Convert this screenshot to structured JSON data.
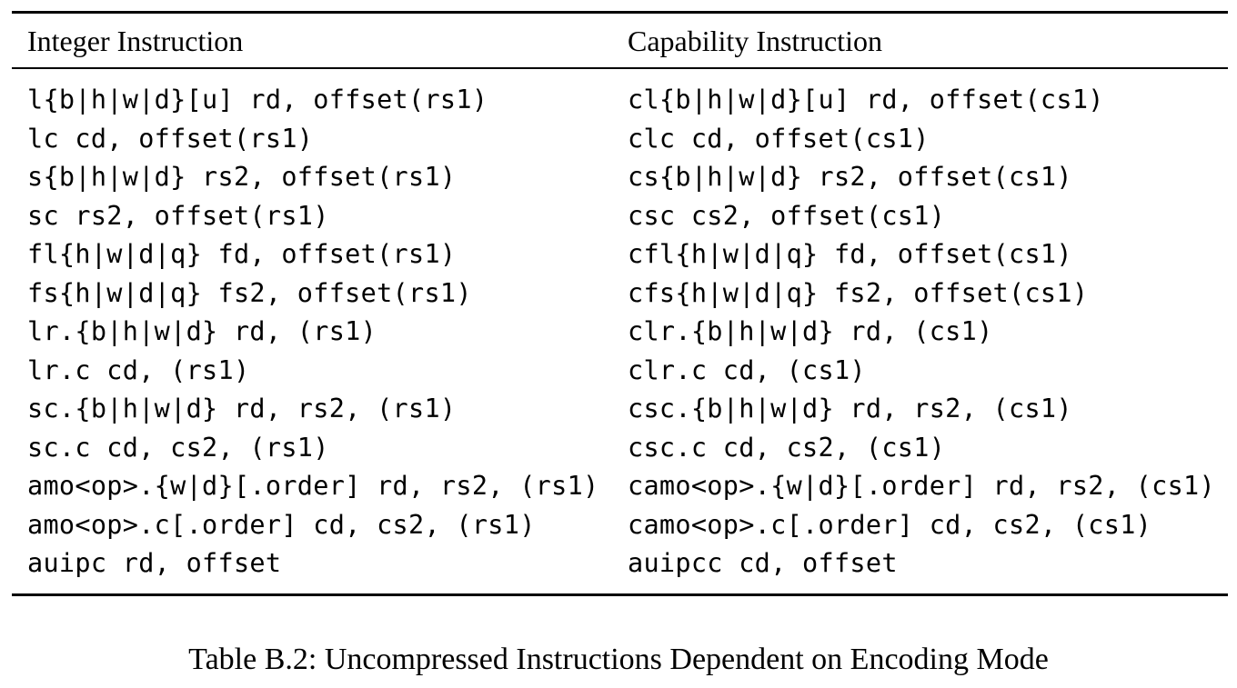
{
  "table": {
    "headers": {
      "left": "Integer Instruction",
      "right": "Capability Instruction"
    },
    "rows": [
      {
        "left": "l{b|h|w|d}[u] rd, offset(rs1)",
        "right": "cl{b|h|w|d}[u] rd, offset(cs1)"
      },
      {
        "left": "lc cd, offset(rs1)",
        "right": "clc cd, offset(cs1)"
      },
      {
        "left": "s{b|h|w|d} rs2, offset(rs1)",
        "right": "cs{b|h|w|d} rs2, offset(cs1)"
      },
      {
        "left": "sc rs2, offset(rs1)",
        "right": "csc cs2, offset(cs1)"
      },
      {
        "left": "fl{h|w|d|q} fd, offset(rs1)",
        "right": "cfl{h|w|d|q} fd, offset(cs1)"
      },
      {
        "left": "fs{h|w|d|q} fs2, offset(rs1)",
        "right": "cfs{h|w|d|q} fs2, offset(cs1)"
      },
      {
        "left": "lr.{b|h|w|d} rd, (rs1)",
        "right": "clr.{b|h|w|d} rd, (cs1)"
      },
      {
        "left": "lr.c cd, (rs1)",
        "right": "clr.c cd, (cs1)"
      },
      {
        "left": "sc.{b|h|w|d} rd, rs2, (rs1)",
        "right": "csc.{b|h|w|d} rd, rs2, (cs1)"
      },
      {
        "left": "sc.c cd, cs2, (rs1)",
        "right": "csc.c cd, cs2, (cs1)"
      },
      {
        "left": "amo<op>.{w|d}[.order] rd, rs2, (rs1)",
        "right": "camo<op>.{w|d}[.order] rd, rs2, (cs1)"
      },
      {
        "left": "amo<op>.c[.order] cd, cs2, (rs1)",
        "right": "camo<op>.c[.order] cd, cs2, (cs1)"
      },
      {
        "left": "auipc rd, offset",
        "right": "auipcc cd, offset"
      }
    ]
  },
  "caption": "Table B.2: Uncompressed Instructions Dependent on Encoding Mode"
}
